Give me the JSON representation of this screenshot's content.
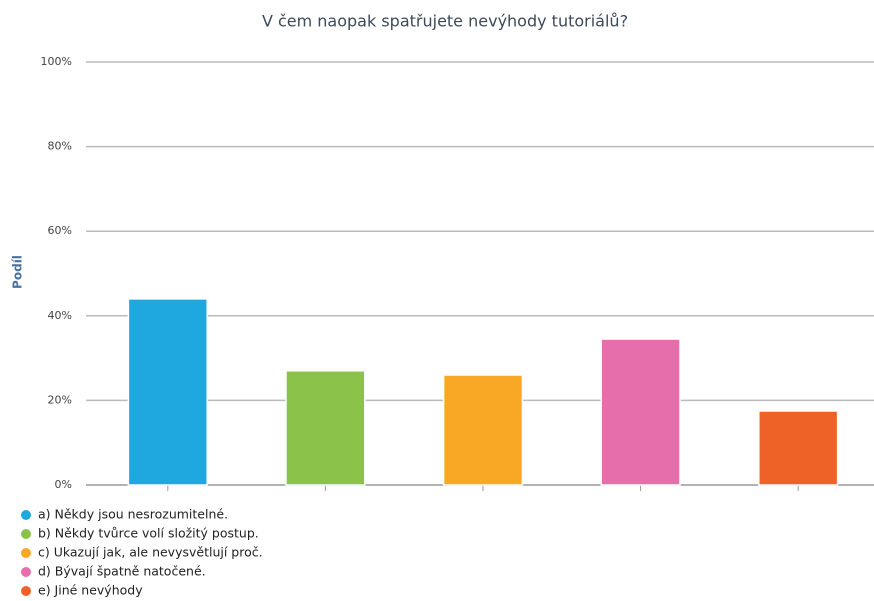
{
  "chart_data": {
    "type": "bar",
    "title": "V čem naopak spatřujete nevýhody tutoriálů?",
    "y_label": "Podíl",
    "categories": [
      "a) Někdy jsou nesrozumitelné.",
      "b) Někdy tvůrce volí složitý postup.",
      "c) Ukazují jak, ale nevysvětlují proč.",
      "d) Bývají špatně natočené.",
      "e) Jiné nevýhody"
    ],
    "values": [
      44,
      27,
      26,
      34.5,
      17.5
    ],
    "colors": [
      "#1fa8e0",
      "#8bc34a",
      "#f9a825",
      "#e66fab",
      "#ef6227"
    ],
    "ylim": [
      0,
      100
    ],
    "yticks": [
      {
        "value": 0,
        "label": "0%"
      },
      {
        "value": 20,
        "label": "20%"
      },
      {
        "value": 40,
        "label": "40%"
      },
      {
        "value": 60,
        "label": "60%"
      },
      {
        "value": 80,
        "label": "80%"
      },
      {
        "value": 100,
        "label": "100%"
      }
    ],
    "grid": true,
    "legend": "bottom-left"
  }
}
